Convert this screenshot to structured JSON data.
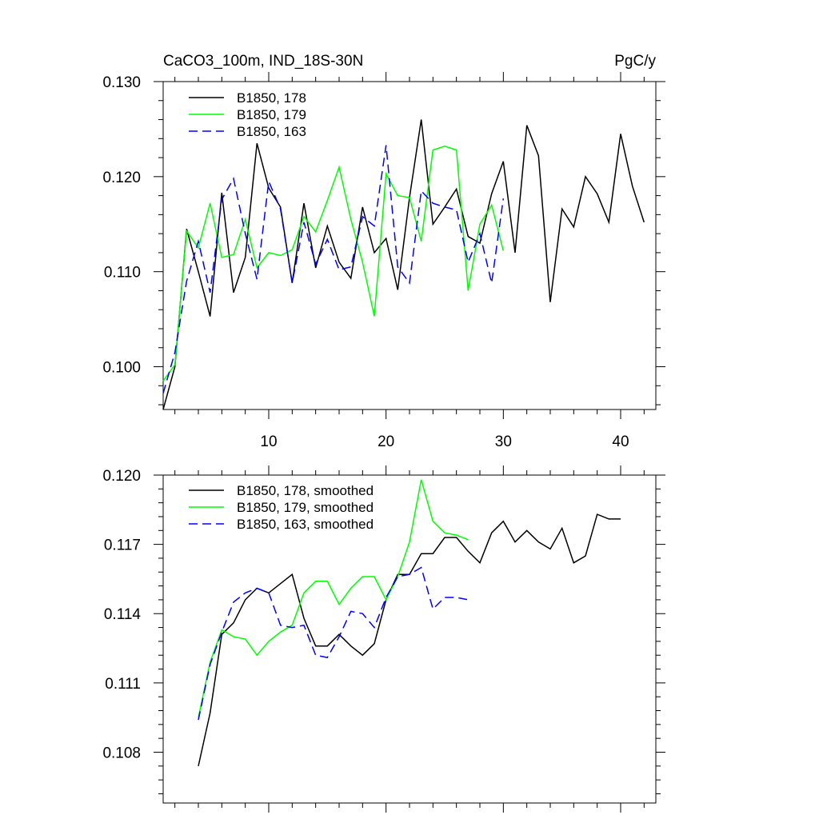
{
  "header": {
    "title_left": "CaCO3_100m, IND_18S-30N",
    "title_right": "PgC/y"
  },
  "colors": {
    "black": "#000000",
    "green": "#00ff00",
    "blue": "#0000ff"
  },
  "chart_data": [
    {
      "type": "line",
      "title": "CaCO3_100m, IND_18S-30N",
      "units": "PgC/y",
      "xlim": [
        1,
        43
      ],
      "ylim": [
        0.0955,
        0.13
      ],
      "xticks": [
        10,
        20,
        30,
        40
      ],
      "xticklabels": [
        "10",
        "20",
        "30",
        "40"
      ],
      "yticks": [
        0.1,
        0.11,
        0.12,
        0.13
      ],
      "yticklabels": [
        "0.100",
        "0.110",
        "0.120",
        "0.130"
      ],
      "legend_position": "top-left",
      "series": [
        {
          "name": "B1850, 178",
          "color": "#000000",
          "dash": "solid",
          "x": [
            1,
            2,
            3,
            4,
            5,
            6,
            7,
            8,
            9,
            10,
            11,
            12,
            13,
            14,
            15,
            16,
            17,
            18,
            19,
            20,
            21,
            22,
            23,
            24,
            25,
            26,
            27,
            28,
            29,
            30,
            31,
            32,
            33,
            34,
            35,
            36,
            37,
            38,
            39,
            40,
            41,
            42
          ],
          "values": [
            0.0955,
            0.1,
            0.1145,
            0.11,
            0.1053,
            0.1183,
            0.1078,
            0.1115,
            0.1235,
            0.1188,
            0.1168,
            0.1088,
            0.1172,
            0.1104,
            0.1148,
            0.111,
            0.1093,
            0.1168,
            0.112,
            0.1135,
            0.1081,
            0.1178,
            0.126,
            0.115,
            0.1168,
            0.1187,
            0.1137,
            0.113,
            0.1182,
            0.1216,
            0.112,
            0.1254,
            0.1222,
            0.1068,
            0.1166,
            0.1147,
            0.12,
            0.1182,
            0.1152,
            0.1245,
            0.119,
            0.1152
          ]
        },
        {
          "name": "B1850, 179",
          "color": "#00ff00",
          "dash": "solid",
          "x": [
            1,
            2,
            3,
            4,
            5,
            6,
            7,
            8,
            9,
            10,
            11,
            12,
            13,
            14,
            15,
            16,
            17,
            18,
            19,
            20,
            21,
            22,
            23,
            24,
            25,
            26,
            27,
            28,
            29,
            30
          ],
          "values": [
            0.0985,
            0.1002,
            0.1143,
            0.1125,
            0.1172,
            0.1115,
            0.1118,
            0.1155,
            0.1104,
            0.112,
            0.1117,
            0.1123,
            0.1158,
            0.1142,
            0.1175,
            0.121,
            0.1155,
            0.111,
            0.1053,
            0.1203,
            0.118,
            0.1178,
            0.1132,
            0.1228,
            0.1232,
            0.1228,
            0.108,
            0.115,
            0.117,
            0.1122
          ]
        },
        {
          "name": "B1850, 163",
          "color": "#0000ff",
          "dash": "dashed",
          "x": [
            1,
            2,
            3,
            4,
            5,
            6,
            7,
            8,
            9,
            10,
            11,
            12,
            13,
            14,
            15,
            16,
            17,
            18,
            19,
            20,
            21,
            22,
            23,
            24,
            25,
            26,
            27,
            28,
            29,
            30
          ],
          "values": [
            0.0972,
            0.1015,
            0.109,
            0.1132,
            0.1078,
            0.1176,
            0.1198,
            0.114,
            0.1092,
            0.1195,
            0.1166,
            0.1088,
            0.1152,
            0.1108,
            0.1134,
            0.1102,
            0.1105,
            0.1158,
            0.1148,
            0.1233,
            0.1105,
            0.1088,
            0.1185,
            0.1172,
            0.1168,
            0.1165,
            0.111,
            0.114,
            0.1088,
            0.1177
          ]
        }
      ]
    },
    {
      "type": "line",
      "xlim": [
        1,
        43
      ],
      "ylim": [
        0.1058,
        0.12
      ],
      "xticks": [
        10,
        20,
        30,
        40
      ],
      "yticks": [
        0.108,
        0.111,
        0.114,
        0.117,
        0.12
      ],
      "yticklabels": [
        "0.108",
        "0.111",
        "0.114",
        "0.117",
        "0.120"
      ],
      "legend_position": "top-left",
      "series": [
        {
          "name": "B1850, 178, smoothed",
          "color": "#000000",
          "dash": "solid",
          "x": [
            4,
            5,
            6,
            7,
            8,
            9,
            10,
            11,
            12,
            13,
            14,
            15,
            16,
            17,
            18,
            19,
            20,
            21,
            22,
            23,
            24,
            25,
            26,
            27,
            28,
            29,
            30,
            31,
            32,
            33,
            34,
            35,
            36,
            37,
            38,
            39,
            40
          ],
          "values": [
            0.1074,
            0.1097,
            0.1131,
            0.1136,
            0.1146,
            0.1151,
            0.1149,
            0.1153,
            0.1157,
            0.1138,
            0.1126,
            0.1126,
            0.1131,
            0.1126,
            0.1122,
            0.1127,
            0.1146,
            0.1157,
            0.1157,
            0.1166,
            0.1166,
            0.1173,
            0.1173,
            0.1167,
            0.1162,
            0.1175,
            0.118,
            0.1171,
            0.1176,
            0.1171,
            0.1168,
            0.1177,
            0.1162,
            0.1165,
            0.1183,
            0.1181,
            0.1181
          ]
        },
        {
          "name": "B1850, 179, smoothed",
          "color": "#00ff00",
          "dash": "solid",
          "x": [
            4,
            5,
            6,
            7,
            8,
            9,
            10,
            11,
            12,
            13,
            14,
            15,
            16,
            17,
            18,
            19,
            20,
            21,
            22,
            23,
            24,
            25,
            26,
            27
          ],
          "values": [
            0.1095,
            0.1119,
            0.1133,
            0.113,
            0.1129,
            0.1122,
            0.1128,
            0.1132,
            0.1135,
            0.1149,
            0.1154,
            0.1154,
            0.1144,
            0.1151,
            0.1156,
            0.1156,
            0.1146,
            0.1156,
            0.1171,
            0.1198,
            0.118,
            0.1175,
            0.1174,
            0.1172
          ]
        },
        {
          "name": "B1850, 163, smoothed",
          "color": "#0000ff",
          "dash": "dashed",
          "x": [
            4,
            5,
            6,
            7,
            8,
            9,
            10,
            11,
            12,
            13,
            14,
            15,
            16,
            17,
            18,
            19,
            20,
            21,
            22,
            23,
            24,
            25,
            26,
            27
          ],
          "values": [
            0.1094,
            0.1118,
            0.1132,
            0.1145,
            0.1149,
            0.1151,
            0.1149,
            0.1135,
            0.1134,
            0.1135,
            0.1122,
            0.1121,
            0.113,
            0.1141,
            0.114,
            0.1134,
            0.1147,
            0.1156,
            0.1157,
            0.116,
            0.1142,
            0.1147,
            0.1147,
            0.1146
          ]
        }
      ]
    }
  ]
}
